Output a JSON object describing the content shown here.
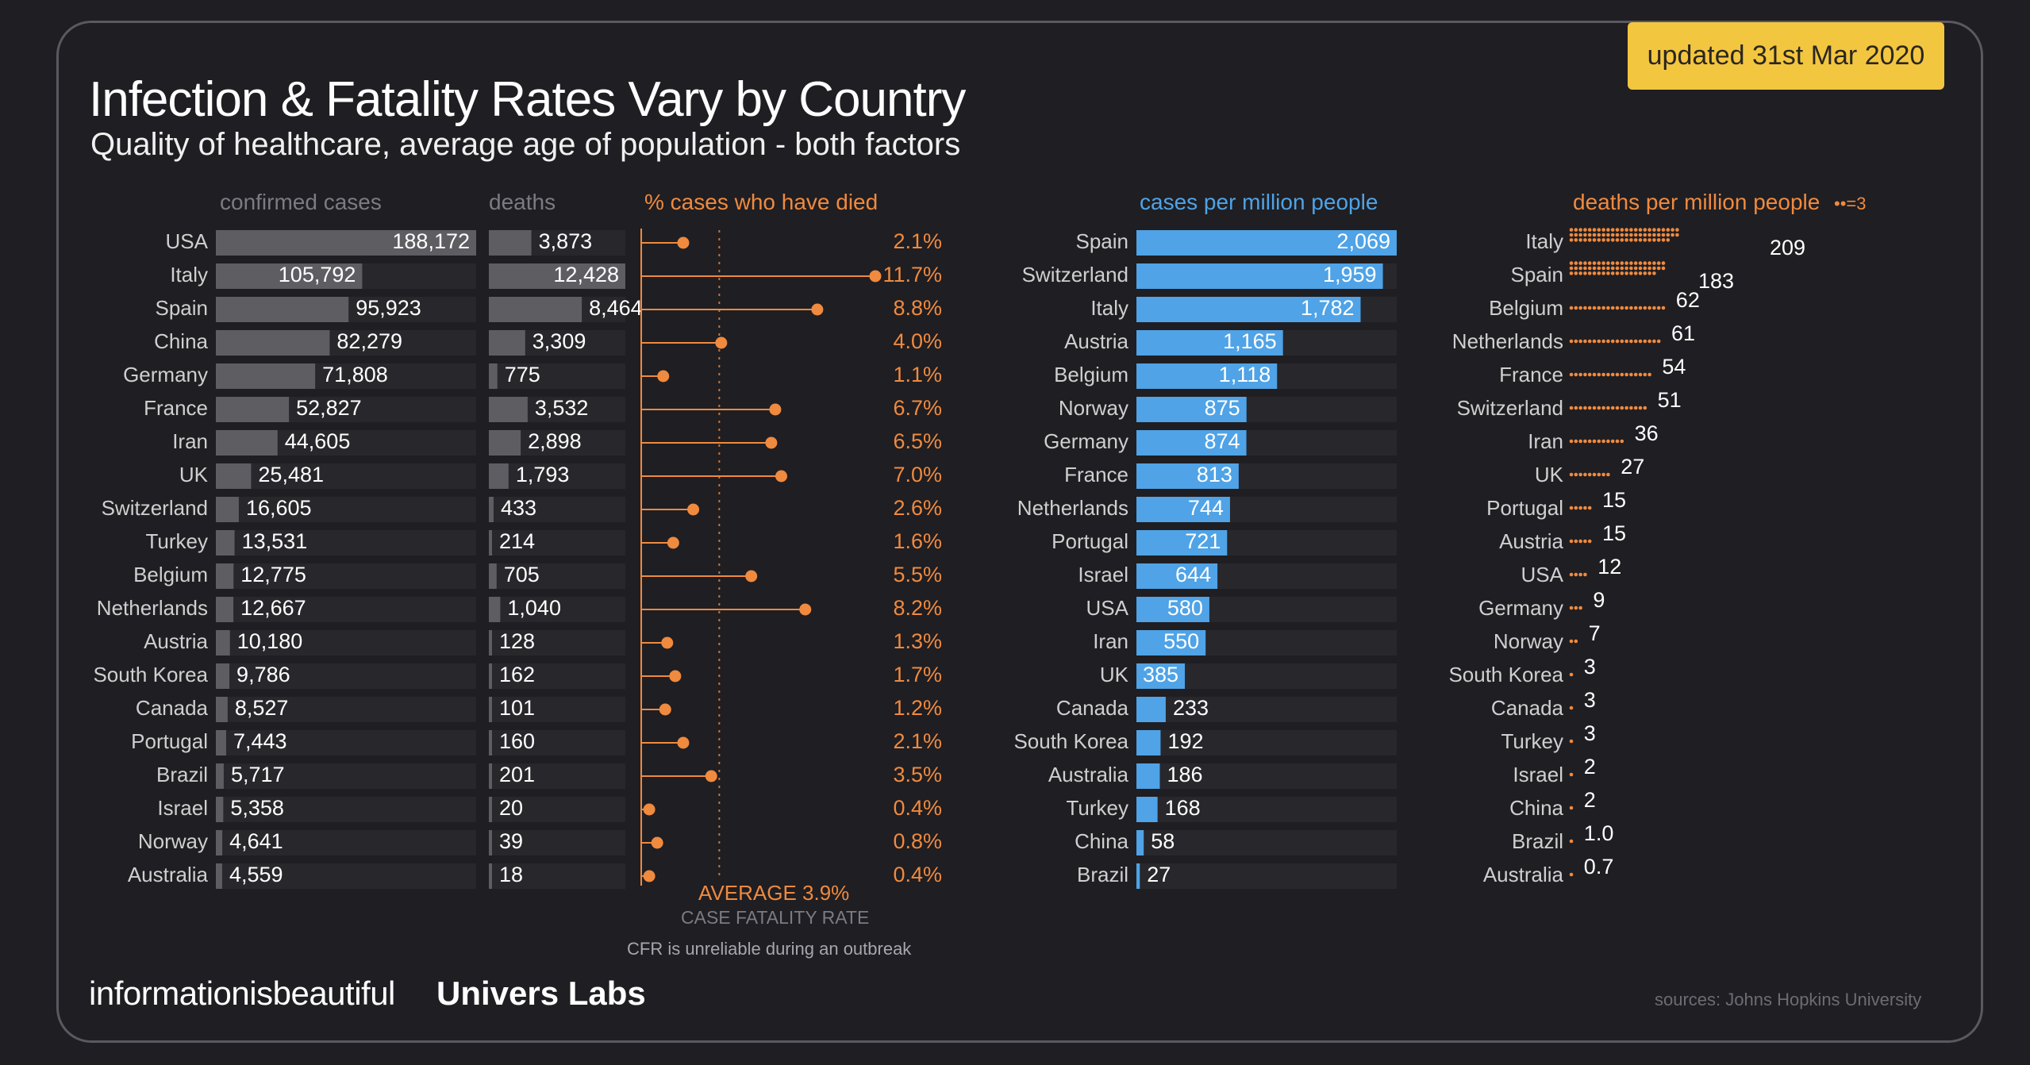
{
  "badge": "updated 31st Mar 2020",
  "title": "Infection & Fatality Rates Vary by Country",
  "subtitle": "Quality of healthcare, average age of population - both factors",
  "headers": {
    "cases": "confirmed cases",
    "deaths": "deaths",
    "cfr": "% cases who have died",
    "cpm": "cases per million people",
    "dpm": "deaths per million people",
    "dpm_legend": "=3"
  },
  "average": {
    "label": "AVERAGE",
    "value": "3.9%",
    "line2": "CASE FATALITY RATE",
    "note": "CFR is unreliable during an outbreak"
  },
  "brand": {
    "primary": "informationisbeautiful",
    "secondary": "Univers Labs"
  },
  "sources": "sources: Johns Hopkins University",
  "colors": {
    "background": "#1f1e22",
    "grey_bar": "#5e5d62",
    "track": "#28272b",
    "orange": "#ef8a3f",
    "blue": "#4fa3e6",
    "badge": "#f3c63f"
  },
  "chart_data": [
    {
      "type": "bar",
      "title": "confirmed cases",
      "categories": [
        "USA",
        "Italy",
        "Spain",
        "China",
        "Germany",
        "France",
        "Iran",
        "UK",
        "Switzerland",
        "Turkey",
        "Belgium",
        "Netherlands",
        "Austria",
        "South Korea",
        "Canada",
        "Portugal",
        "Brazil",
        "Israel",
        "Norway",
        "Australia"
      ],
      "values": [
        188172,
        105792,
        95923,
        82279,
        71808,
        52827,
        44605,
        25481,
        16605,
        13531,
        12775,
        12667,
        10180,
        9786,
        8527,
        7443,
        5717,
        5358,
        4641,
        4559
      ],
      "labels": [
        "188,172",
        "105,792",
        "95,923",
        "82,279",
        "71,808",
        "52,827",
        "44,605",
        "25,481",
        "16,605",
        "13,531",
        "12,775",
        "12,667",
        "10,180",
        "9,786",
        "8,527",
        "7,443",
        "5,717",
        "5,358",
        "4,641",
        "4,559"
      ]
    },
    {
      "type": "bar",
      "title": "deaths",
      "categories": [
        "USA",
        "Italy",
        "Spain",
        "China",
        "Germany",
        "France",
        "Iran",
        "UK",
        "Switzerland",
        "Turkey",
        "Belgium",
        "Netherlands",
        "Austria",
        "South Korea",
        "Canada",
        "Portugal",
        "Brazil",
        "Israel",
        "Norway",
        "Australia"
      ],
      "values": [
        3873,
        12428,
        8464,
        3309,
        775,
        3532,
        2898,
        1793,
        433,
        214,
        705,
        1040,
        128,
        162,
        101,
        160,
        201,
        20,
        39,
        18
      ],
      "labels": [
        "3,873",
        "12,428",
        "8,464",
        "3,309",
        "775",
        "3,532",
        "2,898",
        "1,793",
        "433",
        "214",
        "705",
        "1,040",
        "128",
        "162",
        "101",
        "160",
        "201",
        "20",
        "39",
        "18"
      ]
    },
    {
      "type": "scatter",
      "title": "% cases who have died",
      "categories": [
        "USA",
        "Italy",
        "Spain",
        "China",
        "Germany",
        "France",
        "Iran",
        "UK",
        "Switzerland",
        "Turkey",
        "Belgium",
        "Netherlands",
        "Austria",
        "South Korea",
        "Canada",
        "Portugal",
        "Brazil",
        "Israel",
        "Norway",
        "Australia"
      ],
      "values": [
        2.1,
        11.7,
        8.8,
        4.0,
        1.1,
        6.7,
        6.5,
        7.0,
        2.6,
        1.6,
        5.5,
        8.2,
        1.3,
        1.7,
        1.2,
        2.1,
        3.5,
        0.4,
        0.8,
        0.4
      ],
      "labels": [
        "2.1%",
        "11.7%",
        "8.8%",
        "4.0%",
        "1.1%",
        "6.7%",
        "6.5%",
        "7.0%",
        "2.6%",
        "1.6%",
        "5.5%",
        "8.2%",
        "1.3%",
        "1.7%",
        "1.2%",
        "2.1%",
        "3.5%",
        "0.4%",
        "0.8%",
        "0.4%"
      ],
      "average": 3.9
    },
    {
      "type": "bar",
      "title": "cases per million people",
      "categories": [
        "Spain",
        "Switzerland",
        "Italy",
        "Austria",
        "Belgium",
        "Norway",
        "Germany",
        "France",
        "Netherlands",
        "Portugal",
        "Israel",
        "USA",
        "Iran",
        "UK",
        "Canada",
        "South Korea",
        "Australia",
        "Turkey",
        "China",
        "Brazil"
      ],
      "values": [
        2069,
        1959,
        1782,
        1165,
        1118,
        875,
        874,
        813,
        744,
        721,
        644,
        580,
        550,
        385,
        233,
        192,
        186,
        168,
        58,
        27
      ],
      "labels": [
        "2,069",
        "1,959",
        "1,782",
        "1,165",
        "1,118",
        "875",
        "874",
        "813",
        "744",
        "721",
        "644",
        "580",
        "550",
        "385",
        "233",
        "192",
        "186",
        "168",
        "58",
        "27"
      ]
    },
    {
      "type": "bar",
      "title": "deaths per million people",
      "categories": [
        "Italy",
        "Spain",
        "Belgium",
        "Netherlands",
        "France",
        "Switzerland",
        "Iran",
        "UK",
        "Portugal",
        "Austria",
        "USA",
        "Germany",
        "Norway",
        "South Korea",
        "Canada",
        "Turkey",
        "Israel",
        "China",
        "Brazil",
        "Australia"
      ],
      "values": [
        209,
        183,
        62,
        61,
        54,
        51,
        36,
        27,
        15,
        15,
        12,
        9,
        7,
        3,
        3,
        3,
        2,
        2,
        1.0,
        0.7
      ],
      "labels": [
        "209",
        "183",
        "62",
        "61",
        "54",
        "51",
        "36",
        "27",
        "15",
        "15",
        "12",
        "9",
        "7",
        "3",
        "3",
        "3",
        "2",
        "2",
        "1.0",
        "0.7"
      ],
      "dot_unit": 3
    }
  ]
}
